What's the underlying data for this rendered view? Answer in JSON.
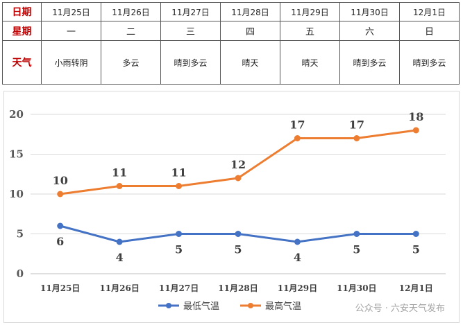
{
  "table": {
    "header_date": "日期",
    "header_week": "星期",
    "header_weather": "天气",
    "dates": [
      "11月25日",
      "11月26日",
      "11月27日",
      "11月28日",
      "11月29日",
      "11月30日",
      "12月1日"
    ],
    "weekdays": [
      "一",
      "二",
      "三",
      "四",
      "五",
      "六",
      "日"
    ],
    "weather": [
      "小雨转阴",
      "多云",
      "晴到多云",
      "晴天",
      "晴天",
      "晴到多云",
      "晴到多云"
    ],
    "head_color": "#c00000"
  },
  "chart_data": {
    "type": "line",
    "categories": [
      "11月25日",
      "11月26日",
      "11月27日",
      "11月28日",
      "11月29日",
      "11月30日",
      "12月1日"
    ],
    "series": [
      {
        "name": "最低气温",
        "values": [
          6,
          4,
          5,
          5,
          4,
          5,
          5
        ],
        "color": "#4472c4"
      },
      {
        "name": "最高气温",
        "values": [
          10,
          11,
          11,
          12,
          17,
          17,
          18
        ],
        "color": "#ed7d31"
      }
    ],
    "y_ticks": [
      "0",
      "5",
      "10",
      "15",
      "20"
    ],
    "ylim": [
      0,
      20
    ],
    "grid": true,
    "legend": "bottom"
  },
  "watermark": "公众号 · 六安天气发布"
}
